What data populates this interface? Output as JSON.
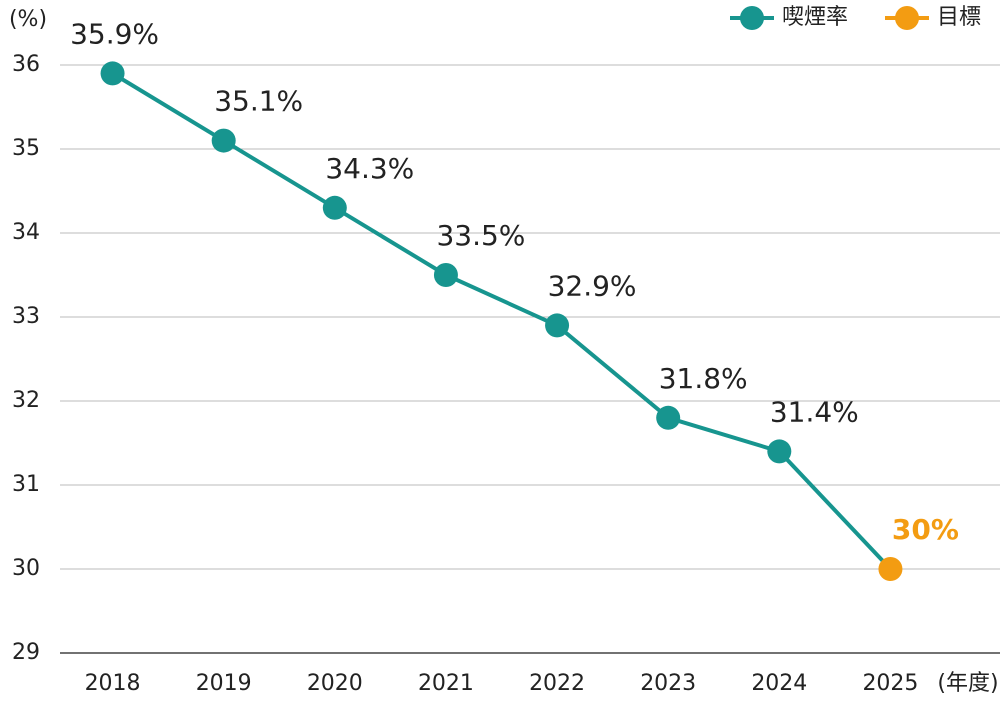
{
  "chart_data": {
    "type": "line",
    "y_label": "(%)",
    "x_label": "(年度)",
    "categories": [
      "2018",
      "2019",
      "2020",
      "2021",
      "2022",
      "2023",
      "2024",
      "2025"
    ],
    "series": [
      {
        "name": "喫煙率",
        "color": "#17958f",
        "values": [
          35.9,
          35.1,
          34.3,
          33.5,
          32.9,
          31.8,
          31.4,
          null
        ],
        "value_labels": [
          "35.9%",
          "35.1%",
          "34.3%",
          "33.5%",
          "32.9%",
          "31.8%",
          "31.4%",
          null
        ]
      },
      {
        "name": "目標",
        "color": "#f39c12",
        "values": [
          null,
          null,
          null,
          null,
          null,
          null,
          null,
          30
        ],
        "value_labels": [
          null,
          null,
          null,
          null,
          null,
          null,
          null,
          "30%"
        ]
      }
    ],
    "ylim": [
      29,
      36
    ],
    "yticks": [
      29,
      30,
      31,
      32,
      33,
      34,
      35,
      36
    ],
    "grid": true,
    "legend": "top-right"
  }
}
